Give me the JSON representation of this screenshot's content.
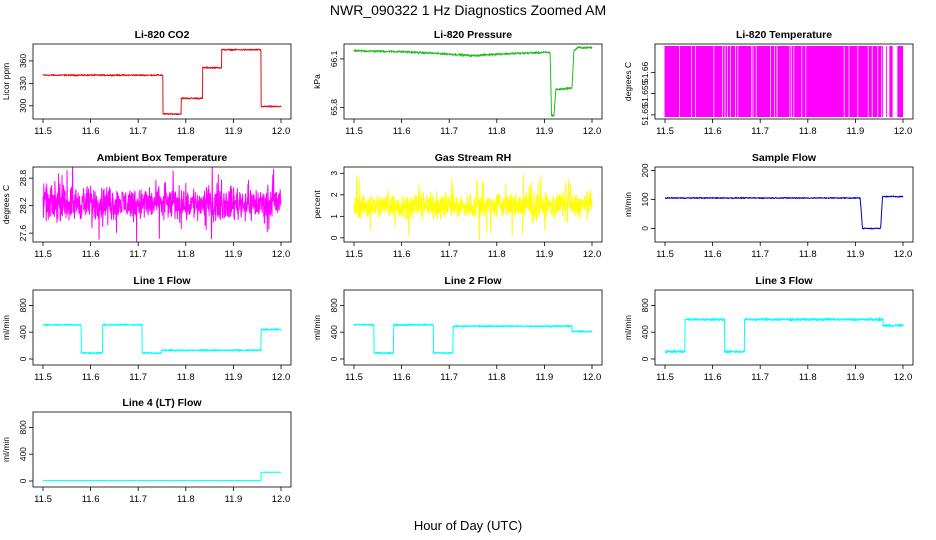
{
  "page": {
    "title": "NWR_090322  1 Hz Diagnostics Zoomed AM",
    "xlabel": "Hour of Day (UTC)"
  },
  "chart_data": [
    {
      "type": "line",
      "title": "Li-820 CO2",
      "ylabel": "Licor ppm",
      "color": "#dd1111",
      "xlim": [
        11.5,
        12.0
      ],
      "xticks": [
        "11.5",
        "11.6",
        "11.7",
        "11.8",
        "11.9",
        "12.0"
      ],
      "ylim": [
        285,
        380
      ],
      "yticks": [
        300,
        330,
        360
      ],
      "noise": 0.6,
      "x": [
        11.5,
        11.752,
        11.752,
        11.79,
        11.79,
        11.835,
        11.835,
        11.875,
        11.875,
        11.958,
        11.958,
        12.0
      ],
      "y": [
        341,
        341,
        289,
        289,
        310,
        310,
        351,
        351,
        375,
        375,
        299,
        299
      ]
    },
    {
      "type": "line",
      "title": "Li-820 Pressure",
      "ylabel": "kPa",
      "color": "#22bb22",
      "xlim": [
        11.5,
        12.0
      ],
      "xticks": [
        "11.5",
        "11.6",
        "11.7",
        "11.8",
        "11.9",
        "12.0"
      ],
      "ylim": [
        65.74,
        66.18
      ],
      "yticks": [
        65.8,
        66.1
      ],
      "noise": 0.004,
      "x": [
        11.5,
        11.6,
        11.7,
        11.75,
        11.8,
        11.9,
        11.912,
        11.915,
        11.92,
        11.924,
        11.958,
        11.962,
        11.97,
        12.0
      ],
      "y": [
        66.15,
        66.145,
        66.13,
        66.12,
        66.13,
        66.14,
        66.14,
        65.75,
        65.75,
        65.91,
        65.92,
        66.15,
        66.17,
        66.17
      ]
    },
    {
      "type": "band",
      "title": "Li-820 Temperature",
      "ylabel": "degrees C",
      "color": "#ff00ff",
      "xlim": [
        11.5,
        12.0
      ],
      "xticks": [
        "11.5",
        "11.6",
        "11.7",
        "11.8",
        "11.9",
        "12.0"
      ],
      "ylim": [
        51.6495,
        51.6662
      ],
      "yticks": [
        51.65,
        51.655,
        51.66
      ],
      "band": [
        51.6495,
        51.6662
      ]
    },
    {
      "type": "line",
      "title": "Ambient Box Temperature",
      "ylabel": "degrees C",
      "color": "#ff00ff",
      "xlim": [
        11.5,
        12.0
      ],
      "xticks": [
        "11.5",
        "11.6",
        "11.7",
        "11.8",
        "11.9",
        "12.0"
      ],
      "ylim": [
        27.45,
        29.0
      ],
      "yticks": [
        27.6,
        28.2,
        28.8
      ],
      "noise": 0.22,
      "spikes": 0.7,
      "x": [
        11.5,
        12.0
      ],
      "y": [
        28.25,
        28.25
      ]
    },
    {
      "type": "line",
      "title": "Gas Stream RH",
      "ylabel": "percent",
      "color": "#ffff00",
      "xlim": [
        11.5,
        12.0
      ],
      "xticks": [
        "11.5",
        "11.6",
        "11.7",
        "11.8",
        "11.9",
        "12.0"
      ],
      "ylim": [
        -0.1,
        3.2
      ],
      "yticks": [
        0.0,
        1.0,
        2.0,
        3.0
      ],
      "noise": 0.35,
      "spikes": 1.4,
      "x": [
        11.5,
        12.0
      ],
      "y": [
        1.5,
        1.5
      ]
    },
    {
      "type": "line",
      "title": "Sample Flow",
      "ylabel": "ml/min",
      "color": "#0000cc",
      "xlim": [
        11.5,
        12.0
      ],
      "xticks": [
        "11.5",
        "11.6",
        "11.7",
        "11.8",
        "11.9",
        "12.0"
      ],
      "ylim": [
        -40,
        205
      ],
      "yticks": [
        0,
        100,
        200
      ],
      "noise": 1.2,
      "x": [
        11.5,
        11.91,
        11.915,
        11.953,
        11.957,
        12.0
      ],
      "y": [
        105,
        105,
        0,
        0,
        110,
        110
      ]
    },
    {
      "type": "line",
      "title": "Line 1 Flow",
      "ylabel": "ml/min",
      "color": "#00ffff",
      "xlim": [
        11.5,
        12.0
      ],
      "xticks": [
        "11.5",
        "11.6",
        "11.7",
        "11.8",
        "11.9",
        "12.0"
      ],
      "ylim": [
        -60,
        1000
      ],
      "yticks": [
        0,
        400,
        800
      ],
      "noise": 8,
      "x": [
        11.5,
        11.58,
        11.58,
        11.625,
        11.625,
        11.708,
        11.708,
        11.748,
        11.748,
        11.958,
        11.958,
        12.0
      ],
      "y": [
        510,
        510,
        90,
        90,
        510,
        510,
        90,
        90,
        130,
        130,
        440,
        440
      ]
    },
    {
      "type": "line",
      "title": "Line 2 Flow",
      "ylabel": "ml/min",
      "color": "#00ffff",
      "xlim": [
        11.5,
        12.0
      ],
      "xticks": [
        "11.5",
        "11.6",
        "11.7",
        "11.8",
        "11.9",
        "12.0"
      ],
      "ylim": [
        -60,
        1000
      ],
      "yticks": [
        0,
        400,
        800
      ],
      "noise": 8,
      "x": [
        11.5,
        11.542,
        11.542,
        11.583,
        11.583,
        11.667,
        11.667,
        11.708,
        11.708,
        11.958,
        11.958,
        12.0
      ],
      "y": [
        510,
        510,
        90,
        90,
        510,
        510,
        90,
        90,
        490,
        490,
        410,
        410
      ]
    },
    {
      "type": "line",
      "title": "Line 3 Flow",
      "ylabel": "ml/min",
      "color": "#00ffff",
      "xlim": [
        11.5,
        12.0
      ],
      "xticks": [
        "11.5",
        "11.6",
        "11.7",
        "11.8",
        "11.9",
        "12.0"
      ],
      "ylim": [
        -60,
        1000
      ],
      "yticks": [
        0,
        400,
        800
      ],
      "noise": 12,
      "x": [
        11.5,
        11.542,
        11.542,
        11.625,
        11.625,
        11.667,
        11.667,
        11.958,
        11.958,
        12.0
      ],
      "y": [
        110,
        110,
        590,
        590,
        110,
        110,
        590,
        590,
        500,
        500
      ]
    },
    {
      "type": "line",
      "title": "Line 4 (LT) Flow",
      "ylabel": "ml/min",
      "color": "#00ffff",
      "xlim": [
        11.5,
        12.0
      ],
      "xticks": [
        "11.5",
        "11.6",
        "11.7",
        "11.8",
        "11.9",
        "12.0"
      ],
      "ylim": [
        -60,
        1000
      ],
      "yticks": [
        0,
        400,
        800
      ],
      "noise": 2,
      "x": [
        11.5,
        11.958,
        11.958,
        12.0
      ],
      "y": [
        5,
        5,
        130,
        130
      ]
    }
  ]
}
